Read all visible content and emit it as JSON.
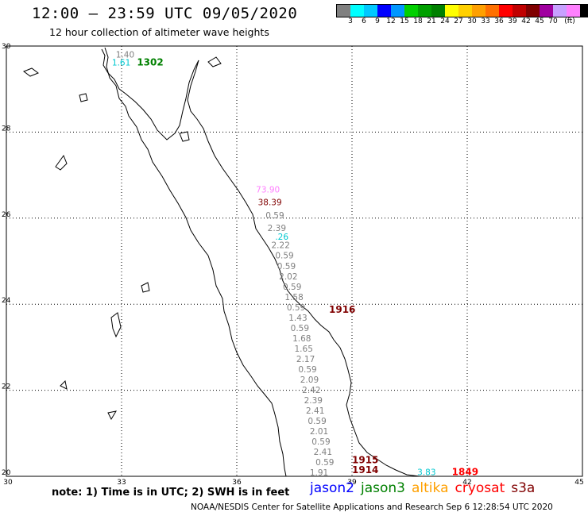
{
  "header": {
    "title": "12:00 – 23:59 UTC 09/05/2020",
    "subtitle": "12 hour collection of altimeter wave heights"
  },
  "colorbar": {
    "colors": [
      "#808080",
      "#00ffff",
      "#00c8ff",
      "#0000ff",
      "#0096ff",
      "#00d000",
      "#00a000",
      "#008000",
      "#ffff00",
      "#ffd000",
      "#ffa000",
      "#ff7000",
      "#ff0000",
      "#c00000",
      "#800000",
      "#a000a0",
      "#c8a0ff",
      "#ff80ff",
      "#000000"
    ],
    "labels": [
      "3",
      "6",
      "9",
      "12",
      "15",
      "18",
      "21",
      "24",
      "27",
      "30",
      "33",
      "36",
      "39",
      "42",
      "45",
      "70",
      "(ft)"
    ]
  },
  "axes": {
    "lon_ticks": [
      "30",
      "33",
      "36",
      "39",
      "42",
      "45"
    ],
    "lat_ticks": [
      "30",
      "28",
      "26",
      "24",
      "22",
      "20"
    ]
  },
  "observations": [
    {
      "lon": 32.85,
      "lat": 29.73,
      "text": "1.40",
      "color": "#808080"
    },
    {
      "lon": 32.75,
      "lat": 29.55,
      "text": "1.61",
      "color": "#00c8d0"
    },
    {
      "lon": 36.5,
      "lat": 26.6,
      "text": "73.90",
      "color": "#ff80ff"
    },
    {
      "lon": 36.55,
      "lat": 26.3,
      "text": "38.39",
      "color": "#800000"
    },
    {
      "lon": 36.75,
      "lat": 26.0,
      "text": "0.59",
      "color": "#808080"
    },
    {
      "lon": 36.8,
      "lat": 25.7,
      "text": "2.39",
      "color": "#808080"
    },
    {
      "lon": 37.0,
      "lat": 25.5,
      "text": ".26",
      "color": "#00c8d0"
    },
    {
      "lon": 36.9,
      "lat": 25.3,
      "text": "2.22",
      "color": "#808080"
    },
    {
      "lon": 37.0,
      "lat": 25.06,
      "text": "0.59",
      "color": "#808080"
    },
    {
      "lon": 37.05,
      "lat": 24.82,
      "text": "0.59",
      "color": "#808080"
    },
    {
      "lon": 37.1,
      "lat": 24.58,
      "text": "2.02",
      "color": "#808080"
    },
    {
      "lon": 37.2,
      "lat": 24.34,
      "text": "0.59",
      "color": "#808080"
    },
    {
      "lon": 37.25,
      "lat": 24.1,
      "text": "1.58",
      "color": "#808080"
    },
    {
      "lon": 37.3,
      "lat": 23.86,
      "text": "0.59",
      "color": "#808080"
    },
    {
      "lon": 37.35,
      "lat": 23.62,
      "text": "1.43",
      "color": "#808080"
    },
    {
      "lon": 37.4,
      "lat": 23.38,
      "text": "0.59",
      "color": "#808080"
    },
    {
      "lon": 37.45,
      "lat": 23.14,
      "text": "1.68",
      "color": "#808080"
    },
    {
      "lon": 37.5,
      "lat": 22.9,
      "text": "1.65",
      "color": "#808080"
    },
    {
      "lon": 37.55,
      "lat": 22.66,
      "text": "2.17",
      "color": "#808080"
    },
    {
      "lon": 37.6,
      "lat": 22.42,
      "text": "0.59",
      "color": "#808080"
    },
    {
      "lon": 37.65,
      "lat": 22.18,
      "text": "2.09",
      "color": "#808080"
    },
    {
      "lon": 37.7,
      "lat": 21.94,
      "text": "2.42",
      "color": "#808080"
    },
    {
      "lon": 37.75,
      "lat": 21.7,
      "text": "2.39",
      "color": "#808080"
    },
    {
      "lon": 37.8,
      "lat": 21.46,
      "text": "2.41",
      "color": "#808080"
    },
    {
      "lon": 37.85,
      "lat": 21.22,
      "text": "0.59",
      "color": "#808080"
    },
    {
      "lon": 37.9,
      "lat": 20.98,
      "text": "2.01",
      "color": "#808080"
    },
    {
      "lon": 37.95,
      "lat": 20.74,
      "text": "0.59",
      "color": "#808080"
    },
    {
      "lon": 38.0,
      "lat": 20.5,
      "text": "2.41",
      "color": "#808080"
    },
    {
      "lon": 38.05,
      "lat": 20.26,
      "text": "0.59",
      "color": "#808080"
    },
    {
      "lon": 37.9,
      "lat": 20.02,
      "text": "1.91",
      "color": "#808080"
    },
    {
      "lon": 40.7,
      "lat": 20.03,
      "text": "3.83",
      "color": "#00c8d0"
    }
  ],
  "passes": [
    {
      "lon": 33.4,
      "lat": 29.55,
      "text": "1302",
      "color": "#008000"
    },
    {
      "lon": 38.4,
      "lat": 23.8,
      "text": "1916",
      "color": "#800000"
    },
    {
      "lon": 39.0,
      "lat": 20.3,
      "text": "1915",
      "color": "#800000"
    },
    {
      "lon": 39.0,
      "lat": 20.07,
      "text": "1914",
      "color": "#800000"
    },
    {
      "lon": 41.6,
      "lat": 20.03,
      "text": "1849",
      "color": "#ff0000"
    }
  ],
  "footer": {
    "note": "note: 1) Time is in UTC; 2) SWH is in feet",
    "legend": [
      {
        "label": "jason2",
        "color": "#0000ff"
      },
      {
        "label": "jason3",
        "color": "#008000"
      },
      {
        "label": "altika",
        "color": "#ffa000"
      },
      {
        "label": "cryosat",
        "color": "#ff0000"
      },
      {
        "label": "s3a",
        "color": "#800000"
      }
    ],
    "credit": "NOAA/NESDIS Center for Satellite Applications and Research   Sep  6 12:28:54 UTC 2020"
  }
}
